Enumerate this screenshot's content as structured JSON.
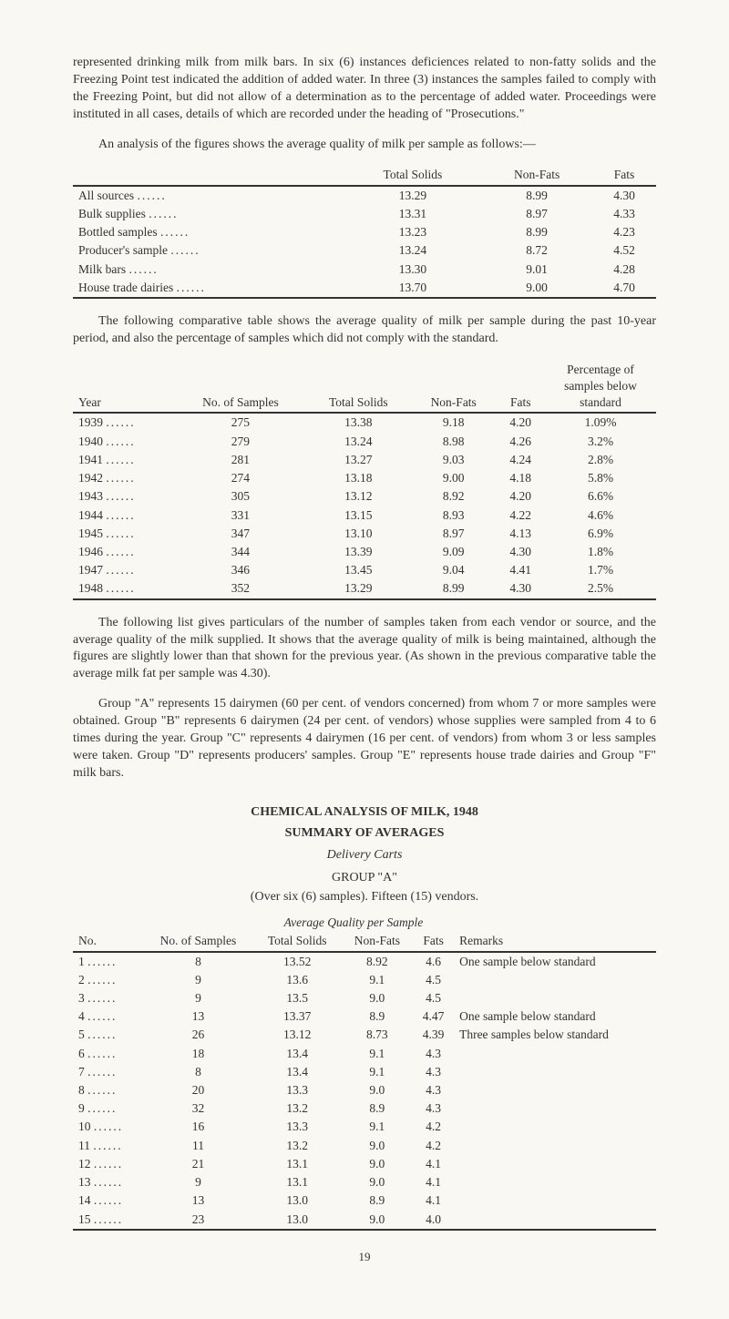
{
  "para1": "represented drinking milk from milk bars. In six (6) instances deficiences related to non-fatty solids and the Freezing Point test indicated the addition of added water. In three (3) instances the samples failed to comply with the Freezing Point, but did not allow of a determination as to the percentage of added water. Proceedings were instituted in all cases, details of which are recorded under the heading of \"Prosecutions.\"",
  "para2": "An analysis of the figures shows the average quality of milk per sample as follows:—",
  "table1": {
    "columns": [
      "",
      "Total Solids",
      "Non-Fats",
      "Fats"
    ],
    "rows": [
      [
        "All sources",
        "13.29",
        "8.99",
        "4.30"
      ],
      [
        "Bulk supplies",
        "13.31",
        "8.97",
        "4.33"
      ],
      [
        "Bottled samples",
        "13.23",
        "8.99",
        "4.23"
      ],
      [
        "Producer's sample",
        "13.24",
        "8.72",
        "4.52"
      ],
      [
        "Milk bars",
        "13.30",
        "9.01",
        "4.28"
      ],
      [
        "House trade dairies",
        "13.70",
        "9.00",
        "4.70"
      ]
    ]
  },
  "para3": "The following comparative table shows the average quality of milk per sample during the past 10-year period, and also the percentage of samples which did not comply with the standard.",
  "table2": {
    "columns": [
      "Year",
      "No. of Samples",
      "Total Solids",
      "Non-Fats",
      "Fats",
      "Percentage of samples below standard"
    ],
    "rows": [
      [
        "1939",
        "275",
        "13.38",
        "9.18",
        "4.20",
        "1.09%"
      ],
      [
        "1940",
        "279",
        "13.24",
        "8.98",
        "4.26",
        "3.2%"
      ],
      [
        "1941",
        "281",
        "13.27",
        "9.03",
        "4.24",
        "2.8%"
      ],
      [
        "1942",
        "274",
        "13.18",
        "9.00",
        "4.18",
        "5.8%"
      ],
      [
        "1943",
        "305",
        "13.12",
        "8.92",
        "4.20",
        "6.6%"
      ],
      [
        "1944",
        "331",
        "13.15",
        "8.93",
        "4.22",
        "4.6%"
      ],
      [
        "1945",
        "347",
        "13.10",
        "8.97",
        "4.13",
        "6.9%"
      ],
      [
        "1946",
        "344",
        "13.39",
        "9.09",
        "4.30",
        "1.8%"
      ],
      [
        "1947",
        "346",
        "13.45",
        "9.04",
        "4.41",
        "1.7%"
      ],
      [
        "1948",
        "352",
        "13.29",
        "8.99",
        "4.30",
        "2.5%"
      ]
    ]
  },
  "para4": "The following list gives particulars of the number of samples taken from each vendor or source, and the average quality of the milk supplied. It shows that the average quality of milk is being maintained, although the figures are slightly lower than that shown for the previous year. (As shown in the previous comparative table the average milk fat per sample was 4.30).",
  "para5": "Group \"A\" represents 15 dairymen (60 per cent. of vendors concerned) from whom 7 or more samples were obtained. Group \"B\" represents 6 dairymen (24 per cent. of vendors) whose supplies were sampled from 4 to 6 times during the year. Group \"C\" represents 4 dairymen (16 per cent. of vendors) from whom 3 or less samples were taken. Group \"D\" represents producers' samples. Group \"E\" represents house trade dairies and Group \"F\" milk bars.",
  "heading1": "CHEMICAL ANALYSIS OF MILK, 1948",
  "heading2": "SUMMARY OF AVERAGES",
  "heading3": "Delivery Carts",
  "heading4": "GROUP \"A\"",
  "heading5": "(Over six (6) samples). Fifteen (15) vendors.",
  "heading6": "Average Quality per Sample",
  "table3": {
    "columns": [
      "No.",
      "No. of Samples",
      "Total Solids",
      "Non-Fats",
      "Fats",
      "Remarks"
    ],
    "rows": [
      [
        "1",
        "8",
        "13.52",
        "8.92",
        "4.6",
        "One sample below standard"
      ],
      [
        "2",
        "9",
        "13.6",
        "9.1",
        "4.5",
        ""
      ],
      [
        "3",
        "9",
        "13.5",
        "9.0",
        "4.5",
        ""
      ],
      [
        "4",
        "13",
        "13.37",
        "8.9",
        "4.47",
        "One sample below standard"
      ],
      [
        "5",
        "26",
        "13.12",
        "8.73",
        "4.39",
        "Three samples below standard"
      ],
      [
        "6",
        "18",
        "13.4",
        "9.1",
        "4.3",
        ""
      ],
      [
        "7",
        "8",
        "13.4",
        "9.1",
        "4.3",
        ""
      ],
      [
        "8",
        "20",
        "13.3",
        "9.0",
        "4.3",
        ""
      ],
      [
        "9",
        "32",
        "13.2",
        "8.9",
        "4.3",
        ""
      ],
      [
        "10",
        "16",
        "13.3",
        "9.1",
        "4.2",
        ""
      ],
      [
        "11",
        "11",
        "13.2",
        "9.0",
        "4.2",
        ""
      ],
      [
        "12",
        "21",
        "13.1",
        "9.0",
        "4.1",
        ""
      ],
      [
        "13",
        "9",
        "13.1",
        "9.0",
        "4.1",
        ""
      ],
      [
        "14",
        "13",
        "13.0",
        "8.9",
        "4.1",
        ""
      ],
      [
        "15",
        "23",
        "13.0",
        "9.0",
        "4.0",
        ""
      ]
    ]
  },
  "pageNumber": "19"
}
